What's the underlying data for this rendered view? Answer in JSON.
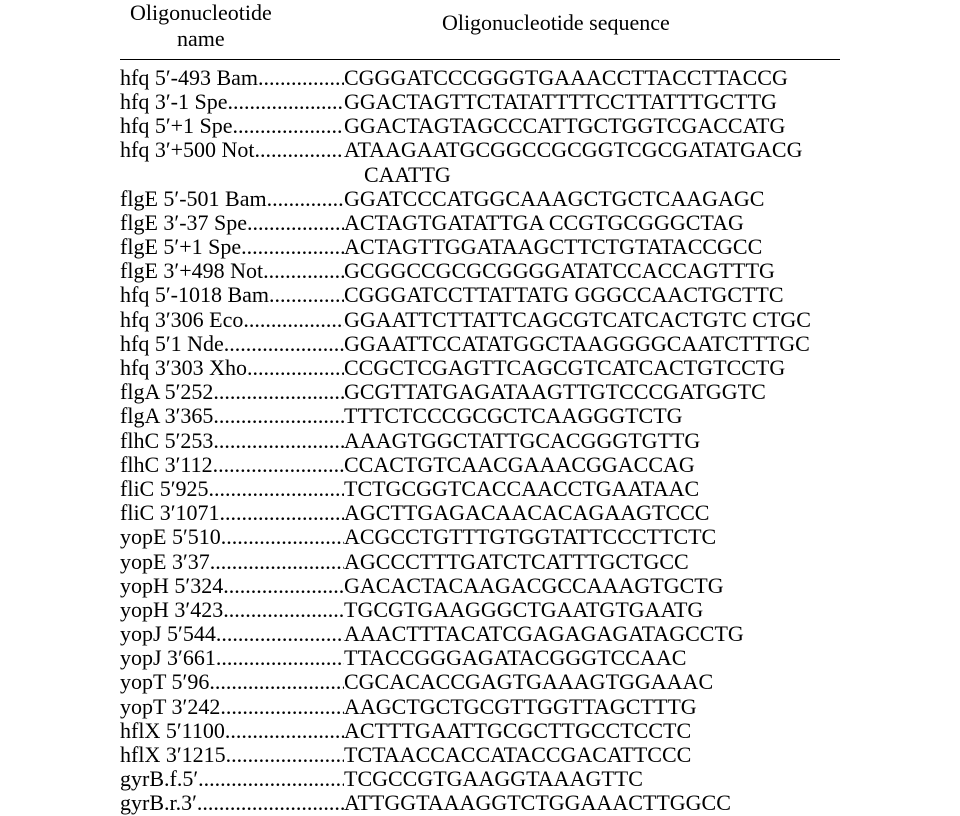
{
  "header": {
    "name_label": "Oligonucleotide name",
    "seq_label": "Oligonucleotide sequence"
  },
  "rows": [
    {
      "name": "hfq 5′-493 Bam",
      "seq": "CGGGATCCCGGGTGAAACCTTACCTTACCG"
    },
    {
      "name": "hfq 3′-1 Spe",
      "seq": "GGACTAGTTCTATATTTTCCTTATTTGCTTG"
    },
    {
      "name": "hfq 5′+1 Spe",
      "seq": "GGACTAGTAGCCCATTGCTGGTCGACCATG"
    },
    {
      "name": "hfq 3′+500 Not",
      "seq": "ATAAGAATGCGGCCGCGGTCGCGATATGACG",
      "seq2": "CAATTG"
    },
    {
      "name": "flgE 5′-501 Bam",
      "seq": "GGATCCCATGGCAAAGCTGCTCAAGAGC"
    },
    {
      "name": "flgE 3′-37 Spe",
      "seq": "ACTAGTGATATTGA CCGTGCGGGCTAG"
    },
    {
      "name": "flgE 5′+1 Spe",
      "seq": "ACTAGTTGGATAAGCTTCTGTATACCGCC"
    },
    {
      "name": "flgE 3′+498 Not",
      "seq": "GCGGCCGCGCGGGGATATCCACCAGTTTG"
    },
    {
      "name": "hfq 5′-1018 Bam",
      "seq": "CGGGATCCTTATTATG GGGCCAACTGCTTC"
    },
    {
      "name": "hfq 3′306 Eco",
      "seq": "GGAATTCTTATTCAGCGTCATCACTGTC CTGC"
    },
    {
      "name": "hfq 5′1 Nde",
      "seq": "GGAATTCCATATGGCTAAGGGGCAATCTTTGC"
    },
    {
      "name": "hfq 3′303 Xho",
      "seq": "CCGCTCGAGTTCAGCGTCATCACTGTCCTG"
    },
    {
      "name": "flgA 5′252",
      "seq": "GCGTTATGAGATAAGTTGTCCCGATGGTC"
    },
    {
      "name": "flgA 3′365",
      "seq": "TTTCTCCCGCGCTCAAGGGTCTG"
    },
    {
      "name": "flhC 5′253",
      "seq": "AAAGTGGCTATTGCACGGGTGTTG"
    },
    {
      "name": "flhC 3′112",
      "seq": "CCACTGTCAACGAAACGGACCAG"
    },
    {
      "name": "fliC 5′925",
      "seq": "TCTGCGGTCACCAACCTGAATAAC"
    },
    {
      "name": "fliC 3′1071",
      "seq": "AGCTTGAGACAACACAGAAGTCCC"
    },
    {
      "name": "yopE 5′510",
      "seq": "ACGCCTGTTTGTGGTATTCCCTTCTC"
    },
    {
      "name": "yopE 3′37",
      "seq": "AGCCCTTTGATCTCATTTGCTGCC"
    },
    {
      "name": "yopH 5′324",
      "seq": "GACACTACAAGACGCCAAAGTGCTG"
    },
    {
      "name": "yopH 3′423",
      "seq": "TGCGTGAAGGGCTGAATGTGAATG"
    },
    {
      "name": "yopJ 5′544",
      "seq": "AAACTTTACATCGAGAGAGATAGCCTG"
    },
    {
      "name": "yopJ 3′661",
      "seq": "TTACCGGGAGATACGGGTCCAAC"
    },
    {
      "name": "yopT 5′96",
      "seq": "CGCACACCGAGTGAAAGTGGAAAC"
    },
    {
      "name": "yopT 3′242",
      "seq": "AAGCTGCTGCGTTGGTTAGCTTTG"
    },
    {
      "name": "hflX 5′1100",
      "seq": "ACTTTGAATTGCGCTTGCCTCCTC"
    },
    {
      "name": "hflX 3′1215",
      "seq": "TCTAACCACCATACCGACATTCCC"
    },
    {
      "name": "gyrB.f.5′",
      "seq": "TCGCCGTGAAGGTAAAGTTC"
    },
    {
      "name": "gyrB.r.3′",
      "seq": "ATTGGTAAAGGTCTGGAAACTTGGCC"
    }
  ],
  "style": {
    "font_size": 22,
    "font_family": "Times New Roman",
    "text_color": "#000000",
    "rule_color": "#000000"
  }
}
